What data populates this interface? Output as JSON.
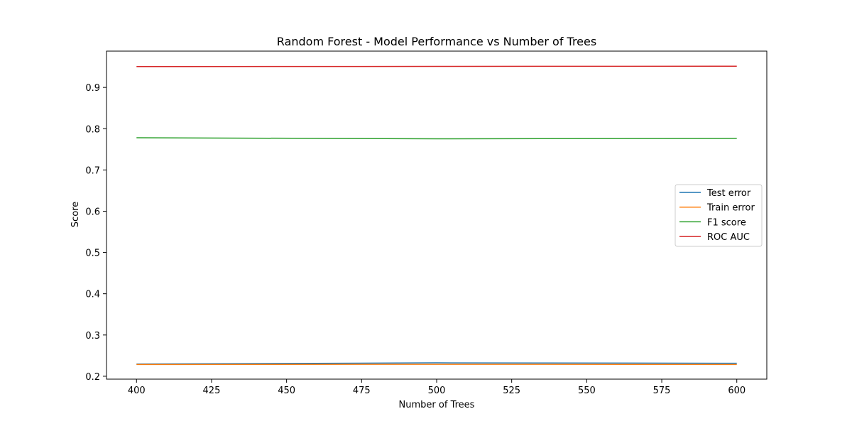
{
  "chart_data": {
    "type": "line",
    "title": "Random Forest - Model Performance vs Number of Trees",
    "xlabel": "Number of Trees",
    "ylabel": "Score",
    "x": [
      400,
      500,
      600
    ],
    "xlim": [
      390,
      610
    ],
    "ylim": [
      0.193,
      0.988
    ],
    "xticks": [
      400,
      425,
      450,
      475,
      500,
      525,
      550,
      575,
      600
    ],
    "yticks": [
      0.2,
      0.3,
      0.4,
      0.5,
      0.6,
      0.7,
      0.8,
      0.9
    ],
    "xtick_labels": [
      "400",
      "425",
      "450",
      "475",
      "500",
      "525",
      "550",
      "575",
      "600"
    ],
    "ytick_labels": [
      "0.2",
      "0.3",
      "0.4",
      "0.5",
      "0.6",
      "0.7",
      "0.8",
      "0.9"
    ],
    "grid": false,
    "legend_position": "center-right",
    "series": [
      {
        "name": "Test error",
        "color": "#1f77b4",
        "values": [
          0.2295,
          0.2325,
          0.2315
        ]
      },
      {
        "name": "Train error",
        "color": "#ff7f0e",
        "values": [
          0.2285,
          0.229,
          0.2285
        ]
      },
      {
        "name": "F1 score",
        "color": "#2ca02c",
        "values": [
          0.778,
          0.7755,
          0.7765
        ]
      },
      {
        "name": "ROC AUC",
        "color": "#d62728",
        "values": [
          0.9505,
          0.951,
          0.9515
        ]
      }
    ]
  }
}
